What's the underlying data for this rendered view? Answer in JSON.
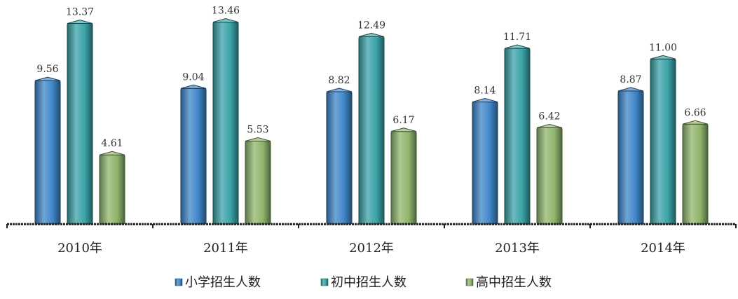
{
  "chart_data": {
    "type": "bar",
    "categories": [
      "2010年",
      "2011年",
      "2012年",
      "2013年",
      "2014年"
    ],
    "series": [
      {
        "name": "小学招生人数",
        "values": [
          9.56,
          9.04,
          8.82,
          8.14,
          8.87
        ],
        "color": "#3f86c9"
      },
      {
        "name": "初中招生人数",
        "values": [
          13.37,
          13.46,
          12.49,
          11.71,
          11.0
        ],
        "color": "#3aa3a8"
      },
      {
        "name": "高中招生人数",
        "values": [
          4.61,
          5.53,
          6.17,
          6.42,
          6.66
        ],
        "color": "#8fb56c"
      }
    ],
    "data_labels": [
      [
        "9.56",
        "9.04",
        "8.82",
        "8.14",
        "8.87"
      ],
      [
        "13.37",
        "13.46",
        "12.49",
        "11.71",
        "11.00"
      ],
      [
        "4.61",
        "5.53",
        "6.17",
        "6.42",
        "6.66"
      ]
    ],
    "ylim": [
      0,
      14
    ],
    "grid": false,
    "legend_position": "bottom",
    "style": "3d-cylinder"
  }
}
